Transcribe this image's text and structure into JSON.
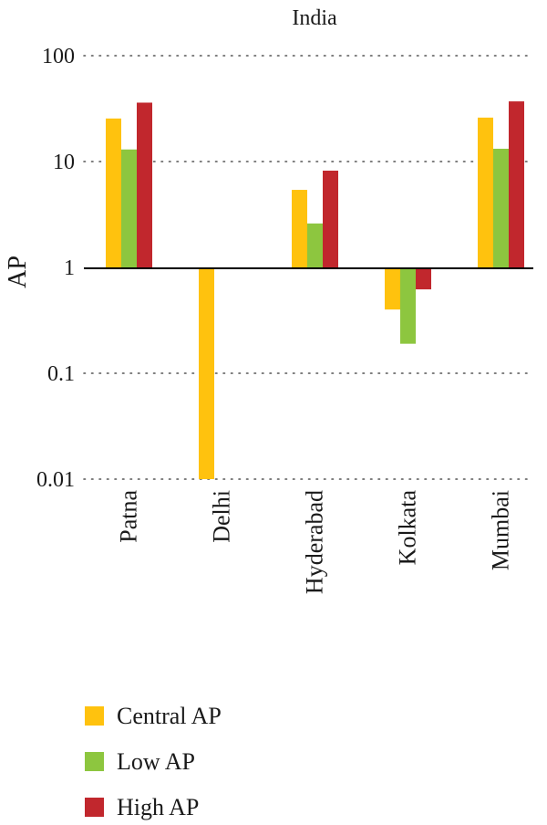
{
  "chart_data": {
    "type": "bar",
    "title": "India",
    "ylabel": "AP",
    "xlabel": "",
    "yscale": "log",
    "ylim": [
      0.01,
      100
    ],
    "baseline": 1,
    "yticks": [
      100,
      10,
      1,
      0.1,
      0.01
    ],
    "ytick_labels": [
      "100",
      "10",
      "1",
      "0.1",
      "0.01"
    ],
    "grid": true,
    "legend_position": "bottom-left",
    "categories": [
      "Patna",
      "Delhi",
      "Hyderabad",
      "Kolkata",
      "Mumbai"
    ],
    "series": [
      {
        "name": "Central AP",
        "color": "#FFC20E",
        "values": [
          25.5,
          0.01,
          5.4,
          0.4,
          26
        ]
      },
      {
        "name": "Low AP",
        "color": "#8DC63F",
        "values": [
          13,
          null,
          2.6,
          0.19,
          13.2
        ]
      },
      {
        "name": "High AP",
        "color": "#C1272D",
        "values": [
          36,
          null,
          8.2,
          0.62,
          37
        ]
      }
    ]
  }
}
